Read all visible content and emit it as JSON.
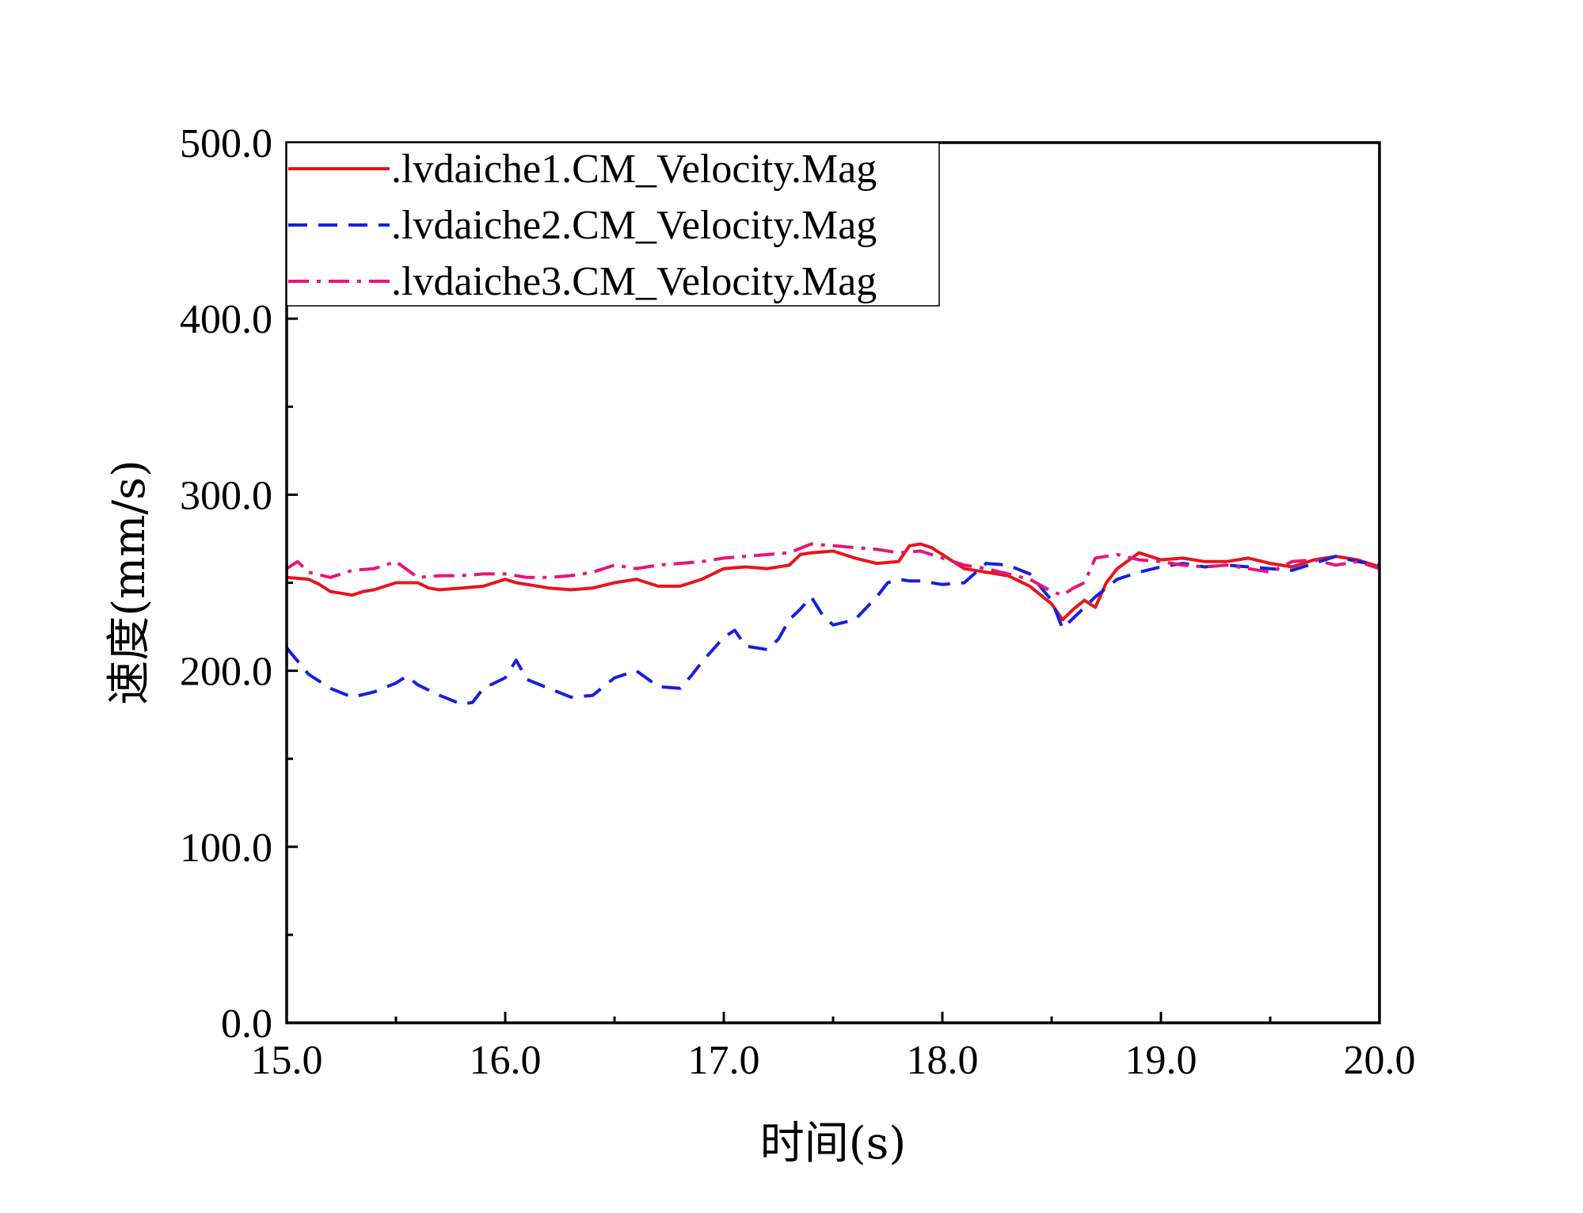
{
  "chart_data": {
    "type": "line",
    "title": "",
    "xlabel": "时间(s)",
    "ylabel": "速度(mm/s)",
    "xlim": [
      15.0,
      20.0
    ],
    "ylim": [
      0.0,
      500.0
    ],
    "x_ticks": [
      "15.0",
      "16.0",
      "17.0",
      "18.0",
      "19.0",
      "20.0"
    ],
    "y_ticks": [
      "0.0",
      "100.0",
      "200.0",
      "300.0",
      "400.0",
      "500.0"
    ],
    "grid": false,
    "legend_position": "top-left",
    "series": [
      {
        "name": ".lvdaiche1.CM_Velocity.Mag",
        "color": "#e8141b",
        "line_style": "solid",
        "x": [
          15.0,
          15.1,
          15.15,
          15.2,
          15.25,
          15.3,
          15.35,
          15.4,
          15.5,
          15.6,
          15.65,
          15.7,
          15.8,
          15.9,
          16.0,
          16.05,
          16.1,
          16.2,
          16.3,
          16.4,
          16.5,
          16.6,
          16.7,
          16.8,
          16.9,
          17.0,
          17.1,
          17.2,
          17.3,
          17.35,
          17.4,
          17.5,
          17.6,
          17.7,
          17.8,
          17.85,
          17.9,
          17.95,
          18.0,
          18.1,
          18.2,
          18.3,
          18.4,
          18.5,
          18.55,
          18.6,
          18.65,
          18.7,
          18.75,
          18.8,
          18.9,
          19.0,
          19.1,
          19.2,
          19.3,
          19.4,
          19.5,
          19.6,
          19.7,
          19.8,
          19.9,
          20.0
        ],
        "y": [
          253,
          252,
          249,
          245,
          244,
          243,
          245,
          246,
          250,
          250,
          247,
          246,
          247,
          248,
          252,
          250,
          249,
          247,
          246,
          247,
          250,
          252,
          248,
          248,
          252,
          258,
          259,
          258,
          260,
          266,
          267,
          268,
          264,
          261,
          262,
          271,
          272,
          270,
          266,
          258,
          256,
          254,
          248,
          238,
          229,
          235,
          240,
          236,
          250,
          258,
          267,
          263,
          264,
          262,
          262,
          264,
          261,
          259,
          263,
          265,
          263,
          259
        ],
        "labels": [
          "253",
          "252",
          "249",
          "245",
          "244",
          "243",
          "245",
          "246",
          "250",
          "250",
          "247",
          "246",
          "247",
          "248",
          "252",
          "250",
          "249",
          "247",
          "246",
          "247",
          "250",
          "252",
          "248",
          "248",
          "252",
          "258",
          "259",
          "258",
          "260",
          "266",
          "267",
          "268",
          "264",
          "261",
          "262",
          "271",
          "272",
          "270",
          "266",
          "258",
          "256",
          "254",
          "248",
          "238",
          "229",
          "235",
          "240",
          "236",
          "250",
          "258",
          "267",
          "263",
          "264",
          "262",
          "262",
          "264",
          "261",
          "259",
          "263",
          "265",
          "263",
          "259"
        ]
      },
      {
        "name": ".lvdaiche2.CM_Velocity.Mag",
        "color": "#1520e0",
        "line_style": "dashed",
        "x": [
          15.0,
          15.1,
          15.2,
          15.3,
          15.4,
          15.5,
          15.55,
          15.6,
          15.7,
          15.8,
          15.85,
          15.9,
          16.0,
          16.05,
          16.1,
          16.2,
          16.3,
          16.4,
          16.5,
          16.6,
          16.7,
          16.8,
          16.85,
          16.9,
          17.0,
          17.05,
          17.1,
          17.2,
          17.25,
          17.3,
          17.35,
          17.4,
          17.45,
          17.5,
          17.6,
          17.7,
          17.75,
          17.8,
          17.85,
          17.9,
          18.0,
          18.1,
          18.2,
          18.3,
          18.4,
          18.5,
          18.55,
          18.6,
          18.65,
          18.7,
          18.8,
          18.9,
          19.0,
          19.1,
          19.2,
          19.3,
          19.4,
          19.5,
          19.6,
          19.7,
          19.8,
          19.9,
          20.0
        ],
        "y": [
          213,
          198,
          190,
          185,
          188,
          193,
          197,
          192,
          186,
          181,
          182,
          190,
          196,
          206,
          195,
          190,
          185,
          186,
          196,
          200,
          191,
          190,
          197,
          205,
          219,
          223,
          214,
          212,
          218,
          229,
          235,
          242,
          232,
          226,
          229,
          242,
          250,
          252,
          251,
          251,
          249,
          250,
          261,
          260,
          255,
          240,
          224,
          230,
          236,
          242,
          252,
          256,
          259,
          261,
          259,
          260,
          259,
          258,
          257,
          261,
          265,
          262,
          260
        ],
        "labels": [
          "213",
          "198",
          "190",
          "185",
          "188",
          "193",
          "197",
          "192",
          "186",
          "181",
          "182",
          "190",
          "196",
          "206",
          "195",
          "190",
          "185",
          "186",
          "196",
          "200",
          "191",
          "190",
          "197",
          "205",
          "219",
          "223",
          "214",
          "212",
          "218",
          "229",
          "235",
          "242",
          "232",
          "226",
          "229",
          "242",
          "250",
          "252",
          "251",
          "251",
          "249",
          "250",
          "261",
          "260",
          "255",
          "240",
          "224",
          "230",
          "236",
          "242",
          "252",
          "256",
          "259",
          "261",
          "259",
          "260",
          "259",
          "258",
          "257",
          "261",
          "265",
          "262",
          "260"
        ]
      },
      {
        "name": ".lvdaiche3.CM_Velocity.Mag",
        "color": "#e8147a",
        "line_style": "dash-dot",
        "x": [
          15.0,
          15.05,
          15.1,
          15.2,
          15.3,
          15.4,
          15.5,
          15.6,
          15.7,
          15.8,
          15.9,
          16.0,
          16.1,
          16.2,
          16.3,
          16.4,
          16.5,
          16.6,
          16.7,
          16.8,
          16.9,
          17.0,
          17.1,
          17.2,
          17.3,
          17.4,
          17.5,
          17.6,
          17.7,
          17.8,
          17.9,
          18.0,
          18.1,
          18.2,
          18.3,
          18.4,
          18.5,
          18.55,
          18.6,
          18.65,
          18.7,
          18.8,
          18.9,
          19.0,
          19.1,
          19.2,
          19.3,
          19.4,
          19.5,
          19.6,
          19.7,
          19.8,
          19.9,
          20.0
        ],
        "y": [
          258,
          262,
          256,
          253,
          257,
          258,
          262,
          253,
          254,
          254,
          255,
          255,
          253,
          253,
          254,
          256,
          260,
          258,
          260,
          261,
          262,
          264,
          265,
          266,
          267,
          272,
          271,
          270,
          269,
          267,
          268,
          264,
          260,
          258,
          255,
          252,
          245,
          243,
          247,
          250,
          264,
          266,
          263,
          262,
          260,
          259,
          260,
          258,
          256,
          262,
          263,
          260,
          262,
          258
        ],
        "labels": [
          "258",
          "262",
          "256",
          "253",
          "257",
          "258",
          "262",
          "253",
          "254",
          "254",
          "255",
          "255",
          "253",
          "253",
          "254",
          "256",
          "260",
          "258",
          "260",
          "261",
          "262",
          "264",
          "265",
          "266",
          "267",
          "272",
          "271",
          "270",
          "269",
          "267",
          "268",
          "264",
          "260",
          "258",
          "255",
          "252",
          "245",
          "243",
          "247",
          "250",
          "264",
          "266",
          "263",
          "262",
          "260",
          "259",
          "260",
          "258",
          "256",
          "262",
          "263",
          "260",
          "262",
          "258"
        ]
      }
    ]
  }
}
